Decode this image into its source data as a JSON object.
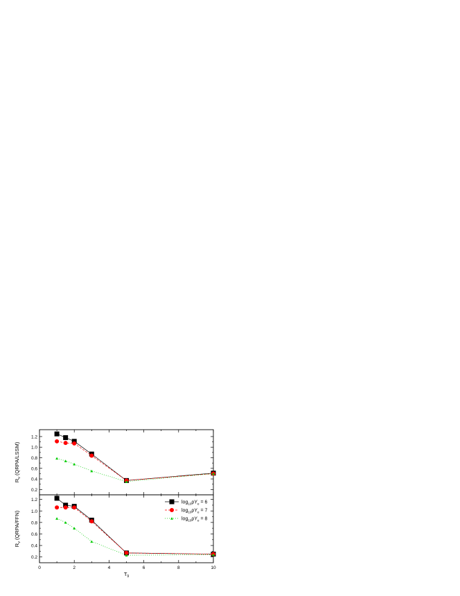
{
  "x_axis": {
    "label": "T",
    "label_sub": "9",
    "range": [
      0,
      10
    ],
    "ticks": [
      0,
      2,
      4,
      6,
      8,
      10
    ]
  },
  "chart_data": [
    {
      "type": "line",
      "panel": "top",
      "ylabel": "R",
      "ylabel_sub": "ν",
      "ylabel_rest": " (QRPA/LSSM)",
      "xlim": [
        0,
        10
      ],
      "ylim": [
        0.1,
        1.33
      ],
      "yticks": [
        "0.2",
        "0.4",
        "0.6",
        "0.8",
        "1.0",
        "1.2"
      ],
      "grid": false,
      "x": [
        1,
        1.5,
        2,
        3,
        5,
        10
      ],
      "series": [
        {
          "key": "s6",
          "marker": "square",
          "color": "#000000",
          "dash": "",
          "values": [
            1.25,
            1.18,
            1.11,
            0.87,
            0.37,
            0.51
          ]
        },
        {
          "key": "s7",
          "marker": "circle",
          "color": "#ff0000",
          "dash": "3,2",
          "values": [
            1.11,
            1.08,
            1.07,
            0.84,
            0.37,
            0.5
          ]
        },
        {
          "key": "s8",
          "marker": "triangle",
          "color": "#00cc00",
          "dash": "1,2",
          "values": [
            0.79,
            0.74,
            0.68,
            0.55,
            0.35,
            0.5
          ]
        }
      ]
    },
    {
      "type": "line",
      "panel": "bottom",
      "ylabel": "R",
      "ylabel_sub": "ν",
      "ylabel_rest": " (QRPA/FFN)",
      "xlim": [
        0,
        10
      ],
      "ylim": [
        0.1,
        1.28
      ],
      "yticks": [
        "0.2",
        "0.4",
        "0.6",
        "0.8",
        "1.0",
        "1.2"
      ],
      "grid": false,
      "legend_position": "top-right",
      "x": [
        1,
        1.5,
        2,
        3,
        5,
        10
      ],
      "series": [
        {
          "key": "s6",
          "name": "log ρY = 6",
          "marker": "square",
          "color": "#000000",
          "dash": "",
          "values": [
            1.22,
            1.1,
            1.08,
            0.84,
            0.27,
            0.25
          ]
        },
        {
          "key": "s7",
          "name": "log ρY = 7",
          "marker": "circle",
          "color": "#ff0000",
          "dash": "3,2",
          "values": [
            1.06,
            1.06,
            1.06,
            0.82,
            0.27,
            0.25
          ]
        },
        {
          "key": "s8",
          "name": "log ρY = 8",
          "marker": "triangle",
          "color": "#00cc00",
          "dash": "1,2",
          "values": [
            0.87,
            0.8,
            0.7,
            0.47,
            0.23,
            0.24
          ]
        }
      ]
    }
  ],
  "legend": {
    "entries": [
      {
        "key": "s6",
        "log": "log",
        "base": "10",
        "rho": "ρY",
        "sub": "e",
        "eq": " = 6"
      },
      {
        "key": "s7",
        "log": "log",
        "base": "10",
        "rho": "ρY",
        "sub": "e",
        "eq": " = 7"
      },
      {
        "key": "s8",
        "log": "log",
        "base": "10",
        "rho": "ρY",
        "sub": "e",
        "eq": " = 8"
      }
    ]
  }
}
